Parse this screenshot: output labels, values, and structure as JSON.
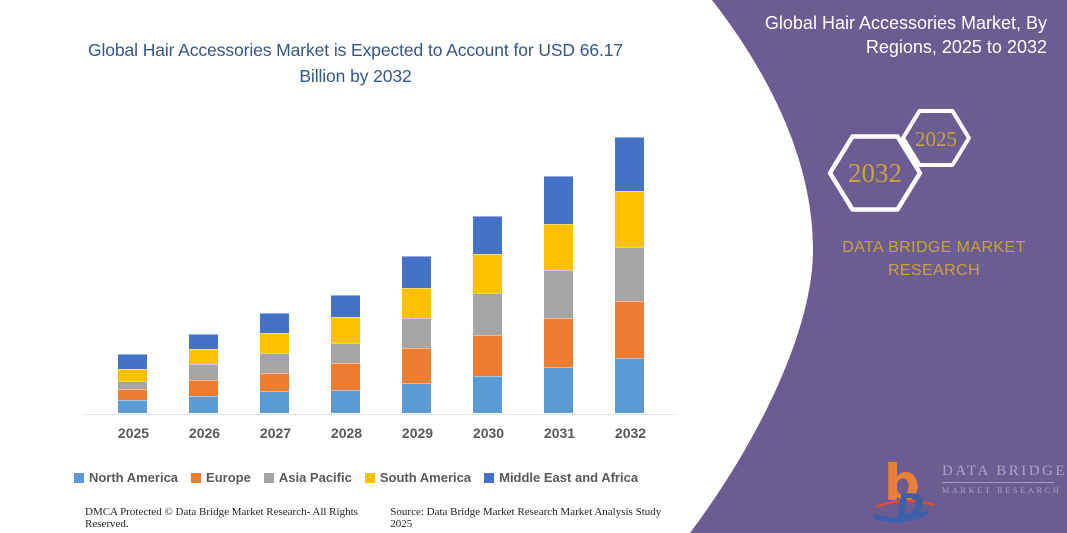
{
  "title": {
    "text": "Global Hair Accessories Market is Expected to Account for USD 66.17 Billion by 2032"
  },
  "panel": {
    "header": "Global Hair Accessories Market, By Regions, 2025 to 2032",
    "hexagons": [
      {
        "label": "2032"
      },
      {
        "label": "2025"
      }
    ],
    "brand_line1": "DATA BRIDGE MARKET",
    "brand_line2": "RESEARCH",
    "colors": {
      "panel_purple": "#6B5C92",
      "gold": "#C9A23C",
      "hex_stroke": "#FFFFFF"
    }
  },
  "logo": {
    "monogram": "b",
    "brand": "DATA BRIDGE",
    "sub": "MARKET RESEARCH",
    "monogram_orange": "#E8803C",
    "monogram_blue": "#3D5FA8"
  },
  "footer": {
    "left": "DMCA Protected © Data Bridge Market Research-  All Rights Reserved.",
    "right": "Source: Data Bridge Market Research  Market Analysis Study 2025"
  },
  "chart_data": {
    "type": "bar",
    "stacked": true,
    "title": "Global Hair Accessories Market is Expected to Account for USD 66.17 Billion by 2032",
    "unit": "USD Billion",
    "categories": [
      "2025",
      "2026",
      "2027",
      "2028",
      "2029",
      "2030",
      "2031",
      "2032"
    ],
    "series": [
      {
        "name": "North America",
        "color": "#5B9BD5",
        "values": [
          3.1,
          4.1,
          5.3,
          5.5,
          7.2,
          8.9,
          11.0,
          13.2
        ]
      },
      {
        "name": "Europe",
        "color": "#ED7D31",
        "values": [
          2.6,
          3.8,
          4.3,
          6.5,
          8.4,
          9.8,
          11.7,
          13.7
        ]
      },
      {
        "name": "Asia Pacific",
        "color": "#A5A5A5",
        "values": [
          1.9,
          3.8,
          4.8,
          4.8,
          7.2,
          10.1,
          11.5,
          12.9
        ]
      },
      {
        "name": "South America",
        "color": "#FFC000",
        "values": [
          3.1,
          3.8,
          4.8,
          6.2,
          7.2,
          9.4,
          11.0,
          13.4
        ]
      },
      {
        "name": "Middle East and Africa",
        "color": "#4472C4",
        "values": [
          3.4,
          3.4,
          4.8,
          5.3,
          7.7,
          9.1,
          11.5,
          12.9
        ]
      }
    ],
    "totals_estimated": [
      14.1,
      18.9,
      24.0,
      28.3,
      37.7,
      47.3,
      56.7,
      66.17
    ],
    "highlight_value": "USD 66.17 Billion by 2032",
    "xlabel": "",
    "ylabel": "",
    "y_axis_visible": false,
    "grid": false,
    "legend_position": "bottom"
  }
}
